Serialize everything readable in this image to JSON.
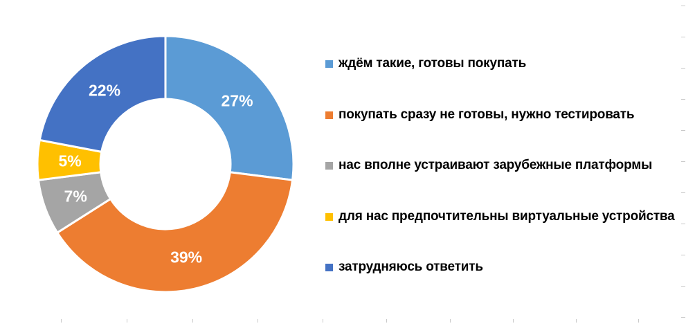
{
  "chart_data": {
    "type": "pie",
    "subtype": "doughnut",
    "total": 100,
    "start_angle_deg": 0,
    "direction": "clockwise",
    "hole_ratio": 0.51,
    "legend_position": "right",
    "data_label_format": "percent",
    "series": [
      {
        "label": "ждём такие, готовы покупать",
        "value": 27,
        "color": "#5B9BD5",
        "display_label": "27%"
      },
      {
        "label": "покупать сразу не готовы, нужно тестировать",
        "value": 39,
        "color": "#ED7D31",
        "display_label": "39%"
      },
      {
        "label": "нас вполне устраивают зарубежные платформы",
        "value": 7,
        "color": "#A5A5A5",
        "display_label": "7%"
      },
      {
        "label": "для нас предпочтительны виртуальные устройства",
        "value": 5,
        "color": "#FFC000",
        "display_label": "5%"
      },
      {
        "label": "затрудняюсь ответить",
        "value": 22,
        "color": "#4472C4",
        "display_label": "22%"
      }
    ]
  },
  "decor": {
    "tick_color": "#c9c9c9",
    "bottom_ticks_x": [
      88,
      183,
      278,
      372,
      466,
      558,
      650,
      741,
      832,
      922
    ],
    "right_ticks_y": [
      8,
      53,
      98,
      143,
      188,
      233,
      278,
      323,
      368,
      413,
      458
    ]
  }
}
